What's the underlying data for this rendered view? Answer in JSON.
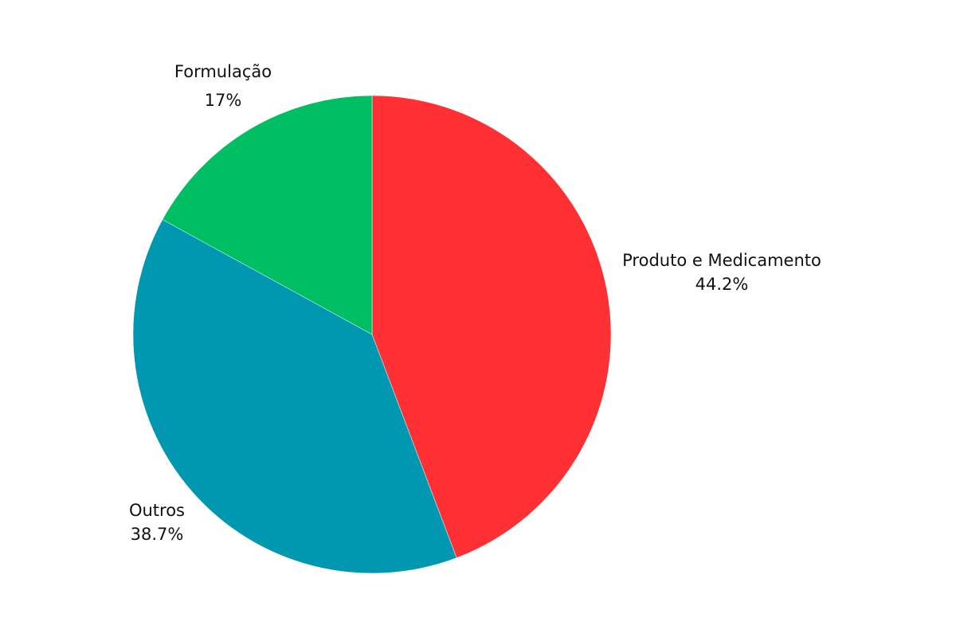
{
  "chart_data": {
    "type": "pie",
    "start_angle_deg": 0,
    "direction": "clockwise",
    "slices": [
      {
        "label": "Produto e Medicamento",
        "value": 44.2,
        "percent_label": "44.2%",
        "color": "#ff3033"
      },
      {
        "label": "Outros",
        "value": 38.7,
        "percent_label": "38.7%",
        "color": "#0098b1"
      },
      {
        "label": "Formulação",
        "value": 17.0,
        "percent_label": "17%",
        "color": "#00bf63"
      }
    ]
  }
}
